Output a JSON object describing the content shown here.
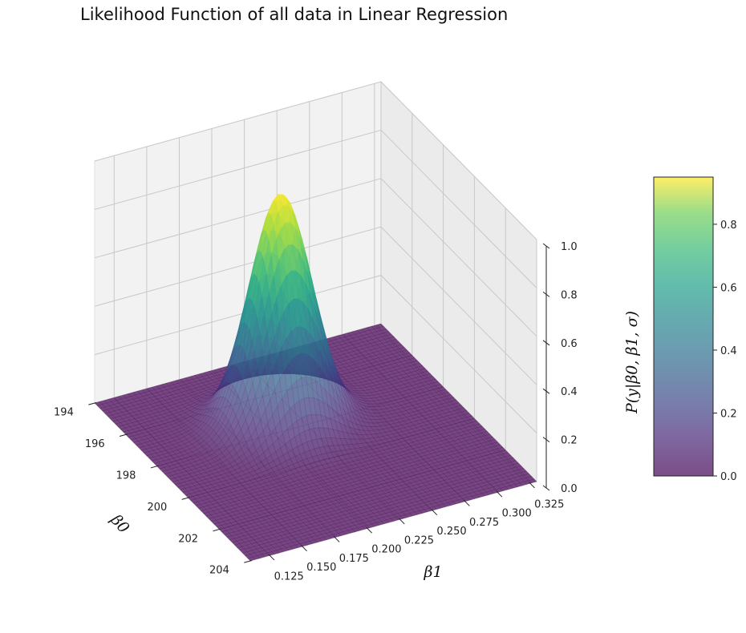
{
  "title": "Likelihood Function of all data in Linear Regression",
  "chart_data": {
    "type": "surface3d",
    "title": "Likelihood Function of all data in Linear Regression",
    "xlabel": "β0",
    "ylabel": "β1",
    "zlabel": "P(y|β0, β1, σ)",
    "xlim": [
      194,
      204
    ],
    "ylim": [
      0.11,
      0.33
    ],
    "zlim": [
      0,
      1.0
    ],
    "x_ticks": [
      "194",
      "196",
      "198",
      "200",
      "202",
      "204"
    ],
    "y_ticks": [
      "0.125",
      "0.150",
      "0.175",
      "0.200",
      "0.225",
      "0.250",
      "0.275",
      "0.300",
      "0.325"
    ],
    "z_ticks": [
      "0.0",
      "0.2",
      "0.4",
      "0.6",
      "0.8",
      "1.0"
    ],
    "peak": {
      "beta0": 197.6,
      "beta1": 0.21,
      "value": 0.95
    },
    "spread": {
      "beta0": 0.9,
      "beta1": 0.022
    },
    "colormap": "viridis",
    "alpha": 0.7,
    "grid": true,
    "colorbar": {
      "ticks": [
        "0.0",
        "0.2",
        "0.4",
        "0.6",
        "0.8"
      ],
      "range": [
        0,
        0.95
      ],
      "placement": "right"
    }
  }
}
